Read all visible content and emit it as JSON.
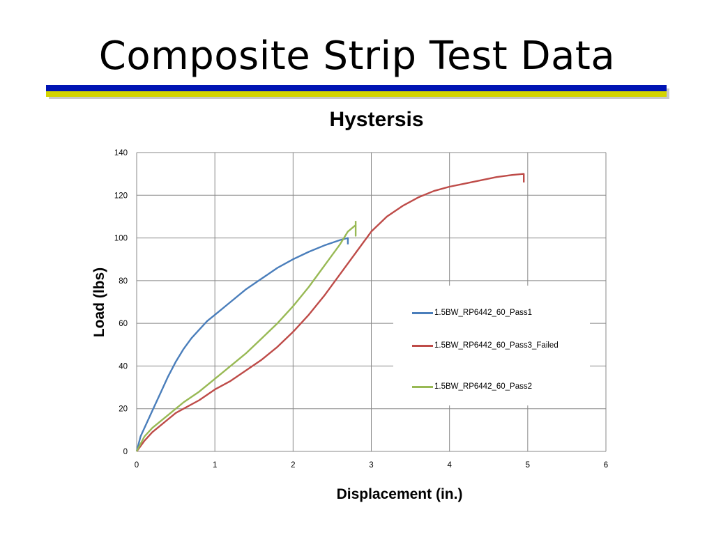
{
  "slide": {
    "title": "Composite Strip Test Data",
    "rule_colors": {
      "blue": "#0014b4",
      "yellow": "#d4d400"
    }
  },
  "chart_data": {
    "type": "line",
    "title": "Hystersis",
    "xlabel": "Displacement (in.)",
    "ylabel": "Load (lbs)",
    "xlim": [
      0,
      6
    ],
    "ylim": [
      0,
      140
    ],
    "xticks": [
      0,
      1,
      2,
      3,
      4,
      5,
      6
    ],
    "yticks": [
      0,
      20,
      40,
      60,
      80,
      100,
      120,
      140
    ],
    "grid": true,
    "legend_position": "right-middle",
    "series": [
      {
        "name": "1.5BW_RP6442_60_Pass1",
        "color": "#4a7ebb",
        "points": [
          [
            0,
            0
          ],
          [
            0.05,
            7
          ],
          [
            0.1,
            11
          ],
          [
            0.15,
            15
          ],
          [
            0.2,
            19
          ],
          [
            0.3,
            27
          ],
          [
            0.4,
            35
          ],
          [
            0.5,
            42
          ],
          [
            0.6,
            48
          ],
          [
            0.7,
            53
          ],
          [
            0.8,
            57
          ],
          [
            0.9,
            61
          ],
          [
            1.0,
            64
          ],
          [
            1.2,
            70
          ],
          [
            1.4,
            76
          ],
          [
            1.6,
            81
          ],
          [
            1.8,
            86
          ],
          [
            2.0,
            90
          ],
          [
            2.2,
            93.5
          ],
          [
            2.4,
            96.5
          ],
          [
            2.6,
            99
          ],
          [
            2.7,
            100
          ],
          [
            2.7,
            97
          ]
        ]
      },
      {
        "name": "1.5BW_RP6442_60_Pass3_Failed",
        "color": "#be4b48",
        "points": [
          [
            0,
            0
          ],
          [
            0.1,
            5
          ],
          [
            0.2,
            9
          ],
          [
            0.3,
            12
          ],
          [
            0.4,
            15
          ],
          [
            0.5,
            18
          ],
          [
            0.6,
            20
          ],
          [
            0.8,
            24
          ],
          [
            1.0,
            29
          ],
          [
            1.2,
            33
          ],
          [
            1.4,
            38
          ],
          [
            1.6,
            43
          ],
          [
            1.8,
            49
          ],
          [
            2.0,
            56
          ],
          [
            2.2,
            64
          ],
          [
            2.4,
            73
          ],
          [
            2.6,
            83
          ],
          [
            2.8,
            93
          ],
          [
            3.0,
            103
          ],
          [
            3.2,
            110
          ],
          [
            3.4,
            115
          ],
          [
            3.6,
            119
          ],
          [
            3.8,
            122
          ],
          [
            4.0,
            124
          ],
          [
            4.2,
            125.5
          ],
          [
            4.4,
            127
          ],
          [
            4.6,
            128.5
          ],
          [
            4.8,
            129.5
          ],
          [
            4.95,
            130
          ],
          [
            4.95,
            126
          ]
        ]
      },
      {
        "name": "1.5BW_RP6442_60_Pass2",
        "color": "#98b954",
        "points": [
          [
            0,
            0
          ],
          [
            0.1,
            7
          ],
          [
            0.2,
            11
          ],
          [
            0.3,
            14
          ],
          [
            0.4,
            17
          ],
          [
            0.5,
            20
          ],
          [
            0.6,
            23
          ],
          [
            0.8,
            28
          ],
          [
            1.0,
            34
          ],
          [
            1.2,
            40
          ],
          [
            1.4,
            46
          ],
          [
            1.6,
            53
          ],
          [
            1.8,
            60
          ],
          [
            2.0,
            68
          ],
          [
            2.2,
            77
          ],
          [
            2.4,
            87
          ],
          [
            2.6,
            97
          ],
          [
            2.7,
            103
          ],
          [
            2.8,
            106
          ],
          [
            2.8,
            101
          ],
          [
            2.8,
            108
          ]
        ]
      }
    ]
  }
}
